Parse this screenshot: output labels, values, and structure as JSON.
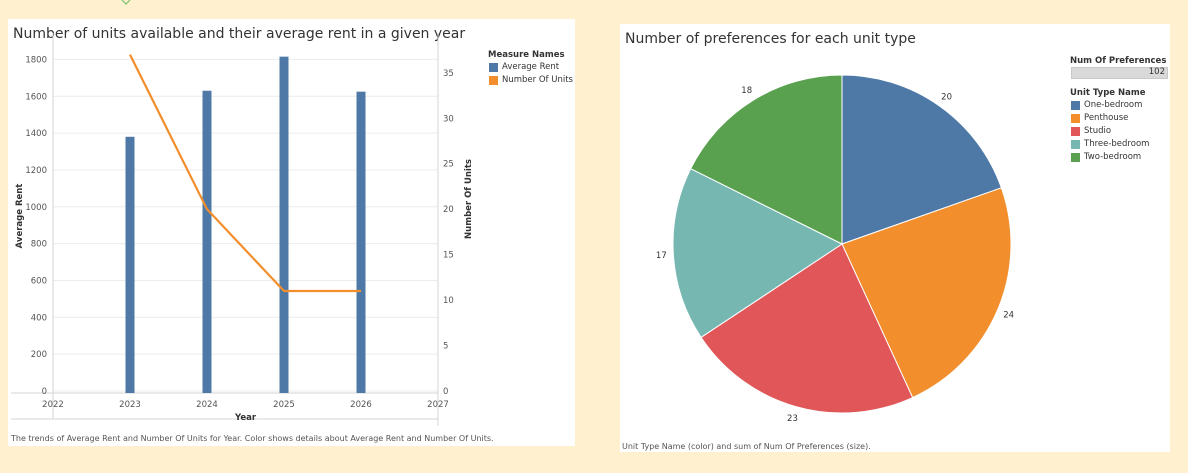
{
  "left_chart": {
    "title": "Number of units available and their average rent in a given year",
    "caption": "The trends of Average Rent and Number Of Units for Year.  Color shows details about Average Rent and Number Of Units.",
    "legend": {
      "title": "Measure Names",
      "items": [
        {
          "label": "Average Rent",
          "color": "#4e79a7"
        },
        {
          "label": "Number Of Units",
          "color": "#f28e2b"
        }
      ]
    }
  },
  "right_chart": {
    "title": "Number of preferences for each unit type",
    "caption": "Unit Type Name (color) and sum of Num Of Preferences (size).",
    "size_legend": {
      "title": "Num Of Preferences",
      "value": "102"
    },
    "legend": {
      "title": "Unit Type Name",
      "items": [
        {
          "label": "One-bedroom",
          "color": "#4e79a7"
        },
        {
          "label": "Penthouse",
          "color": "#f28e2b"
        },
        {
          "label": "Studio",
          "color": "#e15759"
        },
        {
          "label": "Three-bedroom",
          "color": "#76b7b2"
        },
        {
          "label": "Two-bedroom",
          "color": "#59a14f"
        }
      ]
    }
  },
  "chart_data": [
    {
      "type": "bar",
      "title": "Number of units available and their average rent in a given year",
      "xlabel": "Year",
      "ylabel": "Average Rent",
      "ylabel_right": "Number Of Units",
      "x_ticks": [
        "2022",
        "2023",
        "2024",
        "2025",
        "2026",
        "2027"
      ],
      "y_ticks": [
        "0",
        "200",
        "400",
        "600",
        "800",
        "1000",
        "1200",
        "1400",
        "1600",
        "1800"
      ],
      "y_right_ticks": [
        "0",
        "5",
        "10",
        "15",
        "20",
        "25",
        "30",
        "35"
      ],
      "xlim": [
        2022,
        2027
      ],
      "ylim": [
        0,
        1900
      ],
      "ylim_right": [
        0,
        38.5
      ],
      "grid": true,
      "legend_position": "right",
      "series": [
        {
          "name": "Average Rent",
          "type": "bar",
          "axis": "left",
          "color": "#4e79a7",
          "x": [
            2023,
            2024,
            2025,
            2026
          ],
          "values": [
            1380,
            1630,
            1815,
            1625
          ]
        },
        {
          "name": "Number Of Units",
          "type": "line",
          "axis": "right",
          "color": "#f28e2b",
          "x": [
            2023,
            2024,
            2025,
            2026
          ],
          "values": [
            37,
            20,
            11,
            11
          ]
        }
      ]
    },
    {
      "type": "pie",
      "title": "Number of preferences for each unit type",
      "categories": [
        "One-bedroom",
        "Penthouse",
        "Studio",
        "Three-bedroom",
        "Two-bedroom"
      ],
      "values": [
        20,
        24,
        23,
        17,
        18
      ],
      "colors": [
        "#4e79a7",
        "#f28e2b",
        "#e15759",
        "#76b7b2",
        "#59a14f"
      ],
      "total": 102,
      "legend_position": "right"
    }
  ]
}
